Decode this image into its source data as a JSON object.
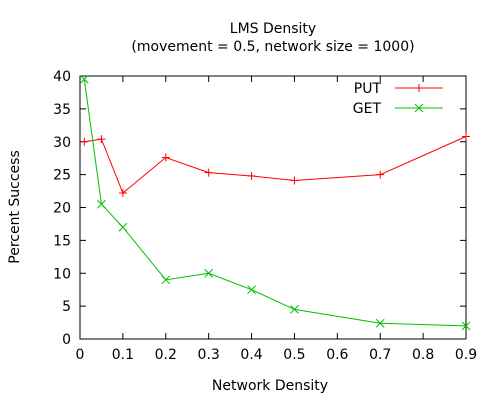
{
  "chart_data": {
    "type": "line",
    "title": "LMS Density",
    "subtitle": "(movement = 0.5, network size = 1000)",
    "xlabel": "Network Density",
    "ylabel": "Percent Success",
    "xlim": [
      0,
      0.9
    ],
    "ylim": [
      0,
      40
    ],
    "xticks": [
      0,
      0.1,
      0.2,
      0.3,
      0.4,
      0.5,
      0.6,
      0.7,
      0.8,
      0.9
    ],
    "xtick_labels": [
      "0",
      "0.1",
      "0.2",
      "0.3",
      "0.4",
      "0.5",
      "0.6",
      "0.7",
      "0.8",
      "0.9"
    ],
    "yticks": [
      0,
      5,
      10,
      15,
      20,
      25,
      30,
      35,
      40
    ],
    "ytick_labels": [
      "0",
      "5",
      "10",
      "15",
      "20",
      "25",
      "30",
      "35",
      "40"
    ],
    "grid": false,
    "legend_position": "top-right",
    "series": [
      {
        "name": "PUT",
        "color": "#ff0000",
        "marker": "plus",
        "x": [
          0.01,
          0.05,
          0.1,
          0.2,
          0.3,
          0.4,
          0.5,
          0.7,
          0.9
        ],
        "y": [
          30,
          30.4,
          22.2,
          27.6,
          25.3,
          24.8,
          24.1,
          25,
          30.8
        ]
      },
      {
        "name": "GET",
        "color": "#00c000",
        "marker": "cross",
        "x": [
          0.01,
          0.05,
          0.1,
          0.2,
          0.3,
          0.4,
          0.5,
          0.7,
          0.9
        ],
        "y": [
          39.5,
          20.5,
          17,
          9,
          10,
          7.5,
          4.5,
          2.4,
          2
        ]
      }
    ]
  }
}
